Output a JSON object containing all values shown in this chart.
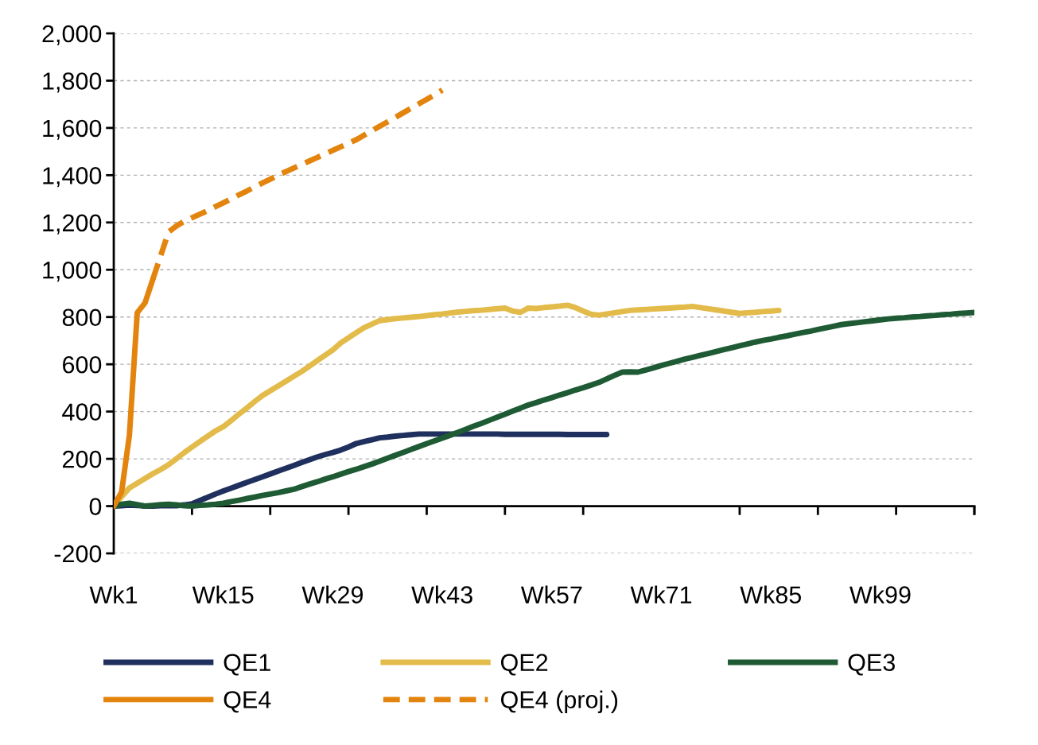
{
  "chart_data": {
    "type": "line",
    "ylim": [
      -200,
      2000
    ],
    "yticks": [
      {
        "value": -200,
        "label": "-200"
      },
      0,
      200,
      400,
      600,
      800,
      {
        "value": 1000,
        "label": "1,000"
      },
      {
        "value": 1200,
        "label": "1,200"
      },
      {
        "value": 1400,
        "label": "1,400"
      },
      {
        "value": 1600,
        "label": "1,600"
      },
      {
        "value": 1800,
        "label": "1,800"
      },
      {
        "value": 2000,
        "label": "2,000"
      }
    ],
    "categories": [
      "Wk1",
      null,
      null,
      null,
      null,
      null,
      null,
      null,
      null,
      null,
      null,
      null,
      null,
      null,
      "Wk15",
      null,
      null,
      null,
      null,
      null,
      null,
      null,
      null,
      null,
      null,
      null,
      null,
      null,
      "Wk29",
      null,
      null,
      null,
      null,
      null,
      null,
      null,
      null,
      null,
      null,
      null,
      null,
      null,
      "Wk43",
      null,
      null,
      null,
      null,
      null,
      null,
      null,
      null,
      null,
      null,
      null,
      null,
      null,
      "Wk57",
      null,
      null,
      null,
      null,
      null,
      null,
      null,
      null,
      null,
      null,
      null,
      null,
      null,
      "Wk71",
      null,
      null,
      null,
      null,
      null,
      null,
      null,
      null,
      null,
      null,
      null,
      null,
      null,
      "Wk85",
      null,
      null,
      null,
      null,
      null,
      null,
      null,
      null,
      null,
      null,
      null,
      null,
      null,
      "Wk99",
      null,
      null,
      null,
      null,
      null,
      null,
      null,
      null,
      null,
      null,
      null,
      null
    ],
    "grid": "y",
    "legend": "bottom",
    "marker": "none",
    "series": [
      {
        "name": "QE1",
        "color": "#1f2f5e",
        "line_style": "solid",
        "values": [
          0,
          2,
          4,
          3,
          0,
          0,
          2,
          3,
          2,
          5,
          10,
          24,
          37,
          51,
          64,
          76,
          88,
          100,
          112,
          124,
          136,
          148,
          160,
          172,
          184,
          196,
          208,
          218,
          227,
          237,
          250,
          265,
          273,
          281,
          289,
          292,
          296,
          299,
          302,
          305,
          305,
          305,
          305,
          305,
          305,
          305,
          305,
          305,
          305,
          305,
          304,
          304,
          304,
          304,
          304,
          304,
          304,
          304,
          303,
          303,
          303,
          303,
          303,
          303,
          null,
          null,
          null,
          null,
          null,
          null,
          null,
          null,
          null,
          null,
          null,
          null,
          null,
          null,
          null,
          null,
          null,
          null,
          null,
          null,
          null,
          null,
          null,
          null,
          null,
          null,
          null,
          null,
          null,
          null,
          null,
          null,
          null,
          null,
          null,
          null,
          null,
          null,
          null,
          null,
          null,
          null,
          null,
          null,
          null,
          null,
          null
        ]
      },
      {
        "name": "QE2",
        "color": "#e3bb4a",
        "line_style": "solid",
        "values": [
          0,
          40,
          77,
          97,
          117,
          137,
          155,
          175,
          200,
          226,
          250,
          273,
          296,
          318,
          336,
          362,
          389,
          415,
          442,
          468,
          488,
          508,
          528,
          549,
          569,
          592,
          615,
          638,
          661,
          690,
          712,
          734,
          755,
          770,
          785,
          789,
          793,
          796,
          799,
          802,
          806,
          810,
          813,
          817,
          821,
          824,
          827,
          829,
          832,
          835,
          838,
          825,
          820,
          838,
          836,
          840,
          843,
          846,
          850,
          840,
          825,
          812,
          808,
          813,
          818,
          823,
          828,
          830,
          832,
          834,
          836,
          838,
          840,
          842,
          845,
          840,
          835,
          830,
          825,
          820,
          815,
          818,
          820,
          823,
          825,
          828,
          null,
          null,
          null,
          null,
          null,
          null,
          null,
          null,
          null,
          null,
          null,
          null,
          null,
          null,
          null,
          null,
          null,
          null,
          null,
          null,
          null,
          null,
          null,
          null,
          null
        ]
      },
      {
        "name": "QE3",
        "color": "#1e5b34",
        "line_style": "solid",
        "values": [
          0,
          8,
          12,
          6,
          0,
          3,
          6,
          8,
          5,
          2,
          0,
          3,
          5,
          8,
          12,
          19,
          25,
          32,
          38,
          45,
          51,
          57,
          64,
          71,
          82,
          93,
          103,
          114,
          124,
          135,
          146,
          156,
          167,
          178,
          190,
          203,
          215,
          227,
          240,
          252,
          264,
          276,
          288,
          300,
          312,
          325,
          338,
          350,
          363,
          376,
          389,
          402,
          415,
          428,
          438,
          449,
          459,
          470,
          480,
          491,
          501,
          512,
          523,
          538,
          553,
          567,
          568,
          567,
          576,
          585,
          595,
          604,
          613,
          622,
          630,
          638,
          646,
          654,
          662,
          670,
          678,
          686,
          694,
          701,
          707,
          714,
          720,
          727,
          734,
          740,
          747,
          754,
          761,
          768,
          772,
          776,
          780,
          784,
          788,
          792,
          795,
          797,
          800,
          802,
          805,
          807,
          810,
          812,
          815,
          817,
          819
        ]
      },
      {
        "name": "QE4",
        "color": "#e3840f",
        "line_style": "solid",
        "values": [
          0,
          60,
          300,
          818,
          860,
          960,
          null,
          null,
          null,
          null,
          null,
          null,
          null,
          null,
          null,
          null,
          null,
          null,
          null,
          null,
          null,
          null,
          null,
          null,
          null,
          null,
          null,
          null,
          null,
          null,
          null,
          null,
          null,
          null,
          null,
          null,
          null,
          null,
          null,
          null,
          null,
          null,
          null,
          null,
          null,
          null,
          null,
          null,
          null,
          null,
          null,
          null,
          null,
          null,
          null,
          null,
          null,
          null,
          null,
          null,
          null,
          null,
          null,
          null,
          null,
          null,
          null,
          null,
          null,
          null,
          null,
          null,
          null,
          null,
          null,
          null,
          null,
          null,
          null,
          null,
          null,
          null,
          null,
          null,
          null,
          null,
          null,
          null,
          null,
          null,
          null,
          null,
          null,
          null,
          null,
          null,
          null,
          null,
          null,
          null,
          null,
          null,
          null,
          null,
          null,
          null,
          null,
          null,
          null,
          null,
          null
        ]
      },
      {
        "name": "QE4 (proj.)",
        "color": "#e3840f",
        "line_style": "dashed",
        "values": [
          null,
          null,
          null,
          null,
          null,
          960,
          1060,
          1160,
          1185,
          1205,
          1220,
          1235,
          1250,
          1267,
          1283,
          1300,
          1317,
          1333,
          1350,
          1367,
          1383,
          1400,
          1415,
          1430,
          1445,
          1460,
          1475,
          1490,
          1505,
          1520,
          1535,
          1550,
          1569,
          1588,
          1607,
          1626,
          1645,
          1664,
          1683,
          1702,
          1721,
          1740,
          1760,
          null,
          null,
          null,
          null,
          null,
          null,
          null,
          null,
          null,
          null,
          null,
          null,
          null,
          null,
          null,
          null,
          null,
          null,
          null,
          null,
          null,
          null,
          null,
          null,
          null,
          null,
          null,
          null,
          null,
          null,
          null,
          null,
          null,
          null,
          null,
          null,
          null,
          null,
          null,
          null,
          null,
          null,
          null,
          null,
          null,
          null,
          null,
          null,
          null,
          null,
          null,
          null,
          null,
          null,
          null,
          null,
          null,
          null,
          null,
          null,
          null,
          null,
          null,
          null,
          null,
          null,
          null,
          null
        ]
      }
    ]
  }
}
